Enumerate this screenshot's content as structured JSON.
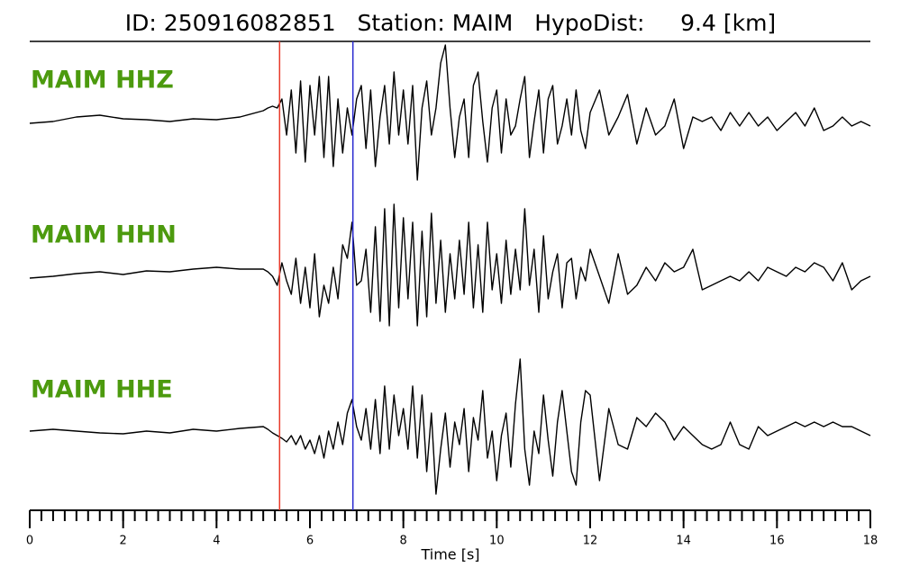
{
  "chart_data": {
    "type": "seismogram",
    "title": "ID: 250916082851   Station: MAIM   HypoDist:     9.4 [km]",
    "xlabel": "Time [s]",
    "xlim": [
      0,
      18
    ],
    "xticks": [
      0,
      2,
      4,
      6,
      8,
      10,
      12,
      14,
      16,
      18
    ],
    "xminorticks": [
      0,
      0.25,
      0.5,
      0.75,
      1,
      1.25,
      1.5,
      1.75,
      2,
      2.25,
      2.5,
      2.75,
      3,
      3.25,
      3.5,
      3.75,
      4,
      4.25,
      4.5,
      4.75,
      5,
      5.25,
      5.5,
      5.75,
      6,
      6.25,
      6.5,
      6.75,
      7,
      7.25,
      7.5,
      7.75,
      8,
      8.25,
      8.5,
      8.75,
      9,
      9.25,
      9.5,
      9.75,
      10,
      10.25,
      10.5,
      10.75,
      11,
      11.25,
      11.5,
      11.75,
      12,
      12.25,
      12.5,
      12.75,
      13,
      13.25,
      13.5,
      13.75,
      14,
      14.25,
      14.5,
      14.75,
      15,
      15.25,
      15.5,
      15.75,
      16,
      16.25,
      16.5,
      16.75,
      17,
      17.25,
      17.5,
      17.75,
      18
    ],
    "ylim": [
      -90,
      90
    ],
    "label_color": "#4c9a0e",
    "picks": [
      {
        "x": 5.35,
        "color": "#e8392a"
      },
      {
        "x": 6.92,
        "color": "#2a2ad0"
      }
    ],
    "x": [
      0,
      0.5,
      1,
      1.5,
      2,
      2.5,
      3,
      3.5,
      4,
      4.5,
      5,
      5.1,
      5.2,
      5.3,
      5.4,
      5.5,
      5.6,
      5.7,
      5.8,
      5.9,
      6,
      6.1,
      6.2,
      6.3,
      6.4,
      6.5,
      6.6,
      6.7,
      6.8,
      6.9,
      7,
      7.1,
      7.2,
      7.3,
      7.4,
      7.5,
      7.6,
      7.7,
      7.8,
      7.9,
      8,
      8.1,
      8.2,
      8.3,
      8.4,
      8.5,
      8.6,
      8.7,
      8.8,
      8.9,
      9,
      9.1,
      9.2,
      9.3,
      9.4,
      9.5,
      9.6,
      9.7,
      9.8,
      9.9,
      10,
      10.1,
      10.2,
      10.3,
      10.4,
      10.5,
      10.6,
      10.7,
      10.8,
      10.9,
      11,
      11.1,
      11.2,
      11.3,
      11.4,
      11.5,
      11.6,
      11.7,
      11.8,
      11.9,
      12,
      12.2,
      12.4,
      12.6,
      12.8,
      13,
      13.2,
      13.4,
      13.6,
      13.8,
      14,
      14.2,
      14.4,
      14.6,
      14.8,
      15,
      15.2,
      15.4,
      15.6,
      15.8,
      16,
      16.2,
      16.4,
      16.6,
      16.8,
      17,
      17.2,
      17.4,
      17.6,
      17.8,
      18
    ],
    "series": [
      {
        "name": "MAIM HHZ",
        "color": "#000000",
        "values": [
          -2,
          0,
          5,
          7,
          3,
          2,
          0,
          3,
          2,
          5,
          12,
          15,
          17,
          15,
          25,
          -15,
          35,
          -35,
          45,
          -45,
          40,
          -15,
          50,
          -40,
          50,
          -50,
          25,
          -35,
          15,
          -15,
          25,
          40,
          -30,
          35,
          -50,
          5,
          40,
          -25,
          55,
          -15,
          35,
          -25,
          40,
          -65,
          15,
          45,
          -15,
          15,
          65,
          85,
          15,
          -40,
          5,
          25,
          -40,
          40,
          55,
          0,
          -45,
          15,
          35,
          -35,
          25,
          -15,
          -5,
          25,
          50,
          -40,
          0,
          35,
          -35,
          25,
          40,
          -25,
          -5,
          25,
          -15,
          35,
          -10,
          -30,
          10,
          35,
          -15,
          5,
          30,
          -25,
          15,
          -15,
          -5,
          25,
          -30,
          5,
          0,
          5,
          -10,
          10,
          -5,
          10,
          -5,
          5,
          -10,
          0,
          10,
          -5,
          15,
          -10,
          -5,
          5,
          -5,
          0,
          -5
        ]
      },
      {
        "name": "MAIM HHN",
        "color": "#000000",
        "values": [
          -2,
          0,
          3,
          5,
          2,
          6,
          5,
          8,
          10,
          8,
          8,
          5,
          0,
          -10,
          15,
          -5,
          -20,
          20,
          -30,
          10,
          -35,
          25,
          -45,
          -10,
          -30,
          10,
          -25,
          35,
          20,
          60,
          -10,
          -5,
          30,
          -40,
          55,
          -50,
          75,
          -55,
          80,
          -35,
          65,
          -25,
          60,
          -55,
          50,
          -45,
          70,
          -30,
          40,
          -40,
          25,
          -25,
          40,
          -20,
          60,
          -35,
          35,
          -40,
          60,
          -15,
          25,
          -30,
          40,
          -20,
          30,
          -15,
          75,
          -10,
          30,
          -40,
          45,
          -25,
          5,
          25,
          -35,
          15,
          20,
          -25,
          10,
          -5,
          30,
          0,
          -30,
          25,
          -20,
          -10,
          10,
          -5,
          15,
          5,
          10,
          30,
          -15,
          -10,
          -5,
          0,
          -5,
          5,
          -5,
          10,
          5,
          0,
          10,
          5,
          15,
          10,
          -5,
          15,
          -15,
          -5,
          0
        ]
      },
      {
        "name": "MAIM HHE",
        "color": "#000000",
        "values": [
          0,
          2,
          0,
          -2,
          -3,
          0,
          -2,
          2,
          0,
          3,
          5,
          2,
          -2,
          -5,
          -8,
          -12,
          -5,
          -15,
          -5,
          -20,
          -10,
          -25,
          -5,
          -30,
          0,
          -20,
          10,
          -15,
          20,
          35,
          5,
          -10,
          25,
          -20,
          35,
          -25,
          50,
          -20,
          40,
          -5,
          25,
          -20,
          50,
          -30,
          40,
          -45,
          20,
          -70,
          -20,
          20,
          -40,
          10,
          -15,
          25,
          -45,
          15,
          -10,
          45,
          -30,
          0,
          -55,
          -5,
          20,
          -40,
          30,
          80,
          -20,
          -60,
          0,
          -25,
          40,
          -10,
          -50,
          10,
          45,
          0,
          -45,
          -60,
          10,
          45,
          40,
          -55,
          25,
          -15,
          -20,
          15,
          5,
          20,
          10,
          -10,
          5,
          -5,
          -15,
          -20,
          -15,
          10,
          -15,
          -20,
          5,
          -5,
          0,
          5,
          10,
          5,
          10,
          5,
          10,
          5,
          5,
          0,
          -5
        ]
      }
    ]
  }
}
